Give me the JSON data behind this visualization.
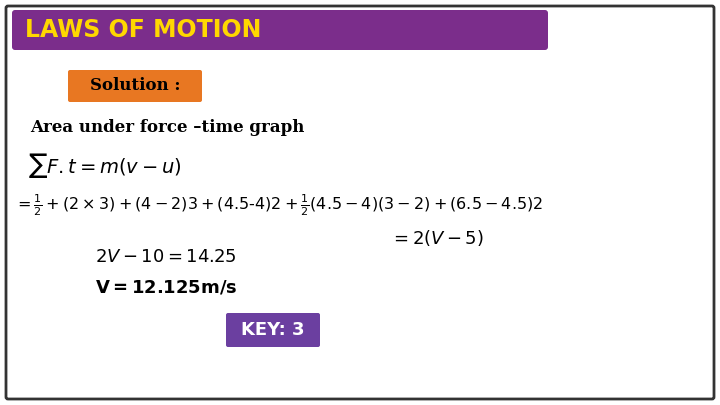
{
  "title": "LAWS OF MOTION",
  "title_bg_color": "#7B2D8B",
  "title_text_color": "#FFD700",
  "solution_label": "Solution :",
  "solution_bg": "#E87722",
  "solution_text_color": "#000000",
  "area_text": "Area under force –time graph",
  "line1": "\\sum F.t = m(v - u)",
  "line2": "=\\frac{1}{2}+(2 \\times 3)+(4-2)3+(4.5-4)2+\\frac{1}{2}(4.5-4)(3-2)+(6.5-4.5)2",
  "line3": "= 2(V - 5)",
  "line4": "2V - 10 = 14.25",
  "line5": "V=12.125m/s",
  "key_label": "KEY: 3",
  "key_bg": "#6B3FA0",
  "key_text_color": "#FFFFFF",
  "bg_color": "#FFFFFF",
  "border_color": "#333333",
  "math_color": "#000000"
}
